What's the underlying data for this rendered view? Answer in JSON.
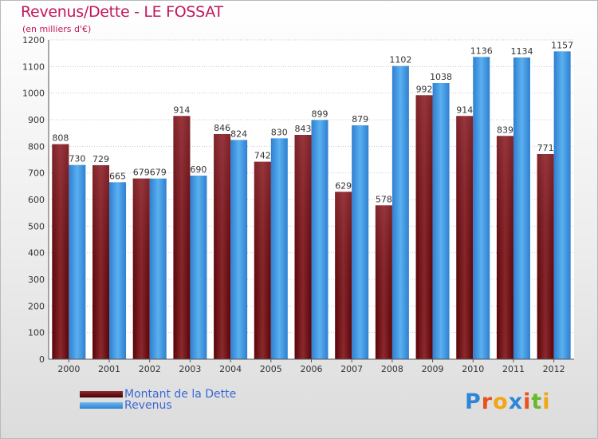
{
  "chart_data": {
    "type": "bar",
    "title": "Revenus/Dette - LE FOSSAT",
    "subtitle": "(en milliers d'€)",
    "categories": [
      "2000",
      "2001",
      "2002",
      "2003",
      "2004",
      "2005",
      "2006",
      "2007",
      "2008",
      "2009",
      "2010",
      "2011",
      "2012"
    ],
    "series": [
      {
        "name": "Montant de la Dette",
        "color": "#7a0a10",
        "values": [
          808,
          729,
          679,
          914,
          846,
          742,
          843,
          629,
          578,
          992,
          914,
          839,
          771
        ]
      },
      {
        "name": "Revenus",
        "color": "#3f9be6",
        "values": [
          730,
          665,
          679,
          690,
          824,
          830,
          899,
          879,
          1102,
          1038,
          1136,
          1134,
          1157
        ]
      }
    ],
    "ylim": [
      0,
      1200
    ],
    "yticks": [
      0,
      100,
      200,
      300,
      400,
      500,
      600,
      700,
      800,
      900,
      1000,
      1100,
      1200
    ],
    "grid": true,
    "legend": "bottom-left"
  },
  "logo": {
    "letters": [
      {
        "ch": "P",
        "color": "#2f86d6"
      },
      {
        "ch": "r",
        "color": "#e8521c"
      },
      {
        "ch": "o",
        "color": "#f2a516"
      },
      {
        "ch": "x",
        "color": "#2f86d6"
      },
      {
        "ch": "i",
        "color": "#e8521c"
      },
      {
        "ch": "t",
        "color": "#6cb82b"
      },
      {
        "ch": "i",
        "color": "#f2a516"
      }
    ]
  }
}
